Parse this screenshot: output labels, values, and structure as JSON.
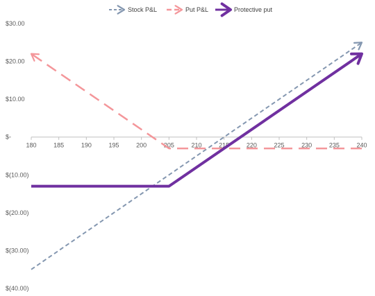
{
  "chart_data": {
    "type": "line",
    "title": "",
    "xlabel": "",
    "ylabel": "",
    "x_ticks": [
      "180",
      "185",
      "190",
      "195",
      "200",
      "205",
      "210",
      "215",
      "220",
      "225",
      "230",
      "235",
      "240"
    ],
    "y_ticks": [
      {
        "value": 30,
        "label": "$30.00"
      },
      {
        "value": 20,
        "label": "$20.00"
      },
      {
        "value": 10,
        "label": "$10.00"
      },
      {
        "value": 0,
        "label": "$-"
      },
      {
        "value": -10,
        "label": "$(10.00)"
      },
      {
        "value": -20,
        "label": "$(20.00)"
      },
      {
        "value": -30,
        "label": "$(30.00)"
      },
      {
        "value": -40,
        "label": "$(40.00)"
      }
    ],
    "xlim": [
      180,
      240
    ],
    "ylim": [
      -40,
      30
    ],
    "legend_position": "top",
    "grid": false,
    "series": [
      {
        "name": "Stock P&L",
        "style": "dashed-arrow",
        "color": "#8497B0",
        "points": [
          [
            180,
            -35
          ],
          [
            240,
            25
          ]
        ]
      },
      {
        "name": "Put P&L",
        "style": "long-dash-arrow",
        "color": "#F4969A",
        "points": [
          [
            240,
            -3
          ],
          [
            205,
            -3
          ],
          [
            180,
            22
          ]
        ]
      },
      {
        "name": "Protective put",
        "style": "solid-arrow",
        "color": "#7030A0",
        "points": [
          [
            180,
            -13
          ],
          [
            205,
            -13
          ],
          [
            240,
            22
          ]
        ]
      }
    ]
  }
}
